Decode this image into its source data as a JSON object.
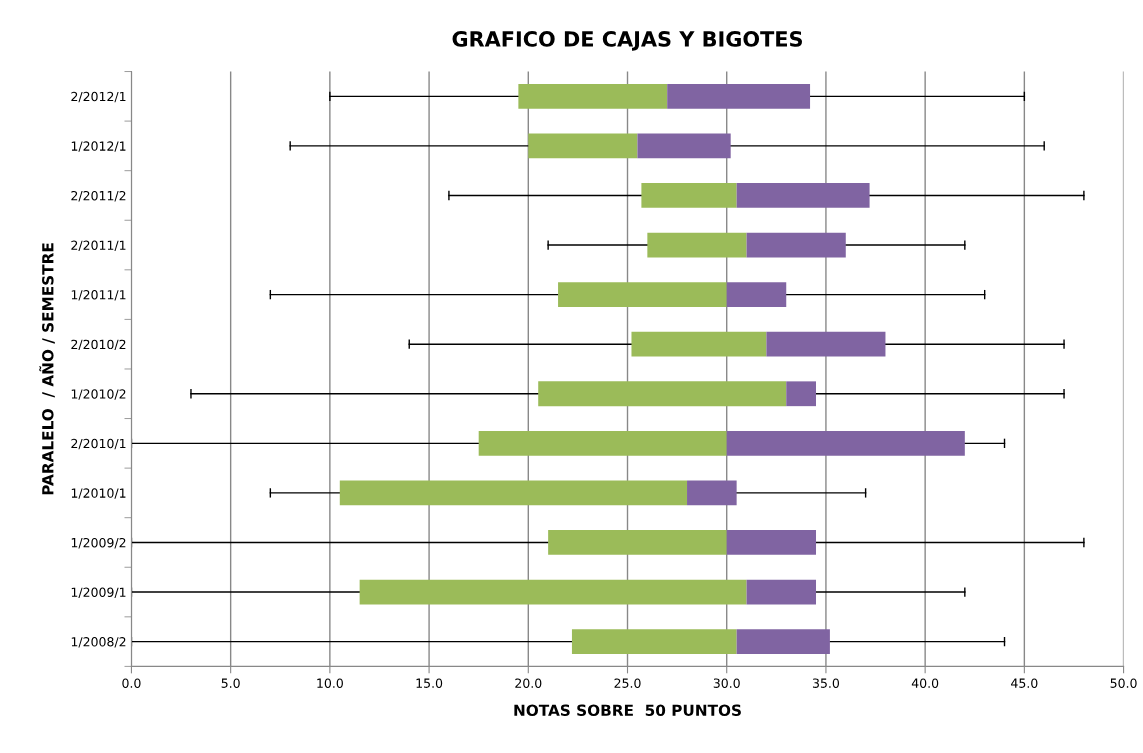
{
  "chart_data": {
    "type": "box",
    "orientation": "horizontal",
    "title": "GRAFICO DE CAJAS Y BIGOTES",
    "xlabel": "NOTAS SOBRE  50 PUNTOS",
    "ylabel": "PARALELO  / AÑO / SEMESTRE",
    "categories": [
      "2/2012/1",
      "1/2012/1",
      "2/2011/2",
      "2/2011/1",
      "1/2011/1",
      "2/2010/2",
      "1/2010/2",
      "2/2010/1",
      "1/2010/1",
      "1/2009/2",
      "1/2009/1",
      "1/2008/2"
    ],
    "series": [
      {
        "color": [
          "#9bbb59",
          "#8064a2"
        ],
        "boxes": [
          {
            "low": 10,
            "q1": 19.5,
            "median": 27,
            "q3": 34.2,
            "high": 45
          },
          {
            "low": 8,
            "q1": 20,
            "median": 25.5,
            "q3": 30.2,
            "high": 46
          },
          {
            "low": 16,
            "q1": 25.7,
            "median": 30.5,
            "q3": 37.2,
            "high": 48
          },
          {
            "low": 21,
            "q1": 26,
            "median": 31,
            "q3": 36,
            "high": 42
          },
          {
            "low": 7,
            "q1": 21.5,
            "median": 30,
            "q3": 33,
            "high": 43
          },
          {
            "low": 14,
            "q1": 25.2,
            "median": 32,
            "q3": 38,
            "high": 47
          },
          {
            "low": 3,
            "q1": 20.5,
            "median": 33,
            "q3": 34.5,
            "high": 47
          },
          {
            "low": 0,
            "q1": 17.5,
            "median": 30,
            "q3": 42,
            "high": 44
          },
          {
            "low": 7,
            "q1": 10.5,
            "median": 28,
            "q3": 30.5,
            "high": 37
          },
          {
            "low": 0,
            "q1": 21,
            "median": 30,
            "q3": 34.5,
            "high": 48
          },
          {
            "low": 0,
            "q1": 11.5,
            "median": 31,
            "q3": 34.5,
            "high": 42
          },
          {
            "low": 0,
            "q1": 22.2,
            "median": 30.5,
            "q3": 35.2,
            "high": 44
          }
        ]
      }
    ],
    "xlim": [
      0,
      50
    ],
    "xticks": [
      {
        "value": 0,
        "label": "0.0"
      },
      {
        "value": 5,
        "label": "5.0"
      },
      {
        "value": 10,
        "label": "10.0"
      },
      {
        "value": 15,
        "label": "15.0"
      },
      {
        "value": 20,
        "label": "20.0"
      },
      {
        "value": 25,
        "label": "25.0"
      },
      {
        "value": 30,
        "label": "30.0"
      },
      {
        "value": 35,
        "label": "35.0"
      },
      {
        "value": 40,
        "label": "40.0"
      },
      {
        "value": 45,
        "label": "45.0"
      },
      {
        "value": 50,
        "label": "50.0"
      }
    ],
    "grid": "x"
  }
}
